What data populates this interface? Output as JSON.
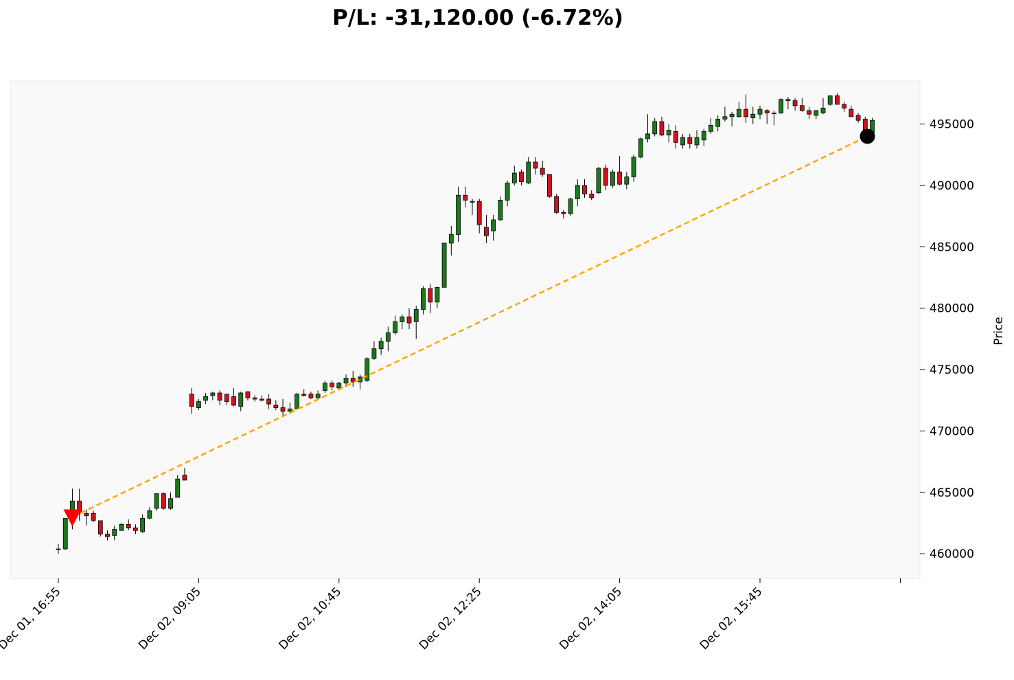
{
  "chart_data": {
    "type": "candlestick",
    "title": "P/L: -31,120.00 (-6.72%)",
    "xlabel": "",
    "ylabel": "Price",
    "ylim": [
      458000,
      498500
    ],
    "yticks": [
      460000,
      465000,
      470000,
      475000,
      480000,
      485000,
      490000,
      495000
    ],
    "xtick_labels": [
      "Dec 01, 16:55",
      "Dec 02, 09:05",
      "Dec 02, 10:45",
      "Dec 02, 12:25",
      "Dec 02, 14:05",
      "Dec 02, 15:45",
      ""
    ],
    "xtick_candle_index": [
      0,
      20,
      40,
      60,
      80,
      100,
      120
    ],
    "up_color": "#1a7a1a",
    "down_color": "#d0121b",
    "background": "#f9f9f9",
    "trade_line_color": "#ffa500",
    "entry": {
      "candle_index": 2,
      "price": 463000,
      "marker": "down-triangle",
      "color": "#ff0000"
    },
    "exit": {
      "candle_index": 116,
      "price": 494000,
      "marker": "circle",
      "color": "#000000"
    },
    "candles": [
      [
        460400,
        460800,
        460000,
        460400
      ],
      [
        460400,
        462900,
        460300,
        462900
      ],
      [
        462900,
        465300,
        462000,
        464300
      ],
      [
        464300,
        465300,
        462700,
        463300
      ],
      [
        463300,
        463600,
        462300,
        463100
      ],
      [
        463300,
        463500,
        462600,
        462700
      ],
      [
        462700,
        462700,
        461400,
        461600
      ],
      [
        461600,
        461900,
        461100,
        461400
      ],
      [
        461500,
        462300,
        461100,
        462000
      ],
      [
        461900,
        462500,
        461900,
        462400
      ],
      [
        462400,
        462800,
        461900,
        462100
      ],
      [
        462100,
        462400,
        461600,
        461900
      ],
      [
        461800,
        463200,
        461700,
        462900
      ],
      [
        462900,
        463800,
        462800,
        463500
      ],
      [
        463700,
        464900,
        463500,
        464900
      ],
      [
        464900,
        465000,
        463600,
        463700
      ],
      [
        463700,
        465000,
        463600,
        464500
      ],
      [
        464600,
        466400,
        464600,
        466100
      ],
      [
        466400,
        467000,
        466000,
        466000
      ],
      [
        473000,
        473500,
        471400,
        472000
      ],
      [
        471900,
        472600,
        471700,
        472400
      ],
      [
        472500,
        473100,
        472200,
        472800
      ],
      [
        472900,
        473200,
        472500,
        473100
      ],
      [
        473100,
        473300,
        472100,
        472500
      ],
      [
        473000,
        473000,
        472100,
        472400
      ],
      [
        472800,
        473500,
        472000,
        472100
      ],
      [
        472000,
        473200,
        471600,
        473100
      ],
      [
        473200,
        473200,
        472500,
        472700
      ],
      [
        472700,
        472900,
        472400,
        472600
      ],
      [
        472600,
        472900,
        472400,
        472500
      ],
      [
        472600,
        473000,
        471800,
        472200
      ],
      [
        472100,
        472500,
        471700,
        471900
      ],
      [
        471900,
        472600,
        471200,
        471600
      ],
      [
        471600,
        472300,
        471400,
        471800
      ],
      [
        471800,
        473100,
        471800,
        473000
      ],
      [
        473000,
        473400,
        472800,
        472900
      ],
      [
        473000,
        473200,
        472600,
        472700
      ],
      [
        472700,
        473300,
        472500,
        473000
      ],
      [
        473300,
        474100,
        473100,
        473900
      ],
      [
        473900,
        474100,
        473300,
        473600
      ],
      [
        473500,
        474000,
        473300,
        473900
      ],
      [
        473900,
        474600,
        473600,
        474300
      ],
      [
        474300,
        474900,
        473600,
        474000
      ],
      [
        474000,
        474600,
        473400,
        474400
      ],
      [
        474100,
        476000,
        474000,
        475900
      ],
      [
        475900,
        477300,
        475800,
        476700
      ],
      [
        476700,
        477600,
        476200,
        477300
      ],
      [
        477300,
        478500,
        476500,
        478000
      ],
      [
        478000,
        479400,
        477800,
        478900
      ],
      [
        478900,
        479500,
        478300,
        479300
      ],
      [
        479300,
        480000,
        478300,
        478800
      ],
      [
        478900,
        480200,
        477500,
        479900
      ],
      [
        479900,
        481800,
        479500,
        481600
      ],
      [
        481600,
        482000,
        479600,
        480500
      ],
      [
        480500,
        481600,
        480000,
        481700
      ],
      [
        481700,
        485300,
        481700,
        485300
      ],
      [
        485300,
        486700,
        484300,
        486000
      ],
      [
        486000,
        489900,
        485400,
        489200
      ],
      [
        489200,
        489900,
        488200,
        488800
      ],
      [
        488700,
        488900,
        487600,
        488700
      ],
      [
        488700,
        488900,
        486100,
        486800
      ],
      [
        486600,
        487600,
        485300,
        485900
      ],
      [
        486300,
        487600,
        485500,
        487200
      ],
      [
        487200,
        489100,
        487100,
        488800
      ],
      [
        488800,
        490400,
        488300,
        490200
      ],
      [
        490200,
        491600,
        490000,
        491000
      ],
      [
        491100,
        491300,
        490000,
        490300
      ],
      [
        490200,
        492300,
        490100,
        491900
      ],
      [
        491900,
        492300,
        490900,
        491400
      ],
      [
        491400,
        492000,
        490700,
        490900
      ],
      [
        490900,
        490900,
        489000,
        489100
      ],
      [
        489100,
        489300,
        487700,
        487800
      ],
      [
        487800,
        488000,
        487300,
        487700
      ],
      [
        487700,
        489000,
        487500,
        488900
      ],
      [
        488900,
        490500,
        488300,
        490000
      ],
      [
        490000,
        490500,
        489000,
        489300
      ],
      [
        489300,
        489600,
        488800,
        489000
      ],
      [
        489400,
        491500,
        489300,
        491400
      ],
      [
        491400,
        491700,
        489600,
        490000
      ],
      [
        490000,
        491300,
        489800,
        491100
      ],
      [
        491100,
        492400,
        490000,
        490100
      ],
      [
        490100,
        491100,
        489700,
        490700
      ],
      [
        490700,
        492500,
        490300,
        492300
      ],
      [
        492300,
        493900,
        492200,
        493800
      ],
      [
        493800,
        495800,
        493500,
        494200
      ],
      [
        494200,
        495500,
        494000,
        495200
      ],
      [
        495200,
        495600,
        494000,
        494100
      ],
      [
        494100,
        495000,
        493500,
        494500
      ],
      [
        494400,
        494900,
        493000,
        493500
      ],
      [
        493300,
        494200,
        493000,
        493900
      ],
      [
        493900,
        494200,
        493000,
        493400
      ],
      [
        493300,
        494500,
        493000,
        493900
      ],
      [
        493700,
        494600,
        493200,
        494400
      ],
      [
        494400,
        495500,
        494200,
        494900
      ],
      [
        494800,
        495700,
        494400,
        495400
      ],
      [
        495400,
        496400,
        495200,
        495600
      ],
      [
        495600,
        496000,
        494800,
        495800
      ],
      [
        495600,
        496800,
        495500,
        496200
      ],
      [
        496200,
        497400,
        495100,
        495600
      ],
      [
        495500,
        496400,
        495000,
        495800
      ],
      [
        495800,
        496500,
        495400,
        496200
      ],
      [
        496100,
        496200,
        495000,
        495900
      ],
      [
        495900,
        496100,
        494900,
        495900
      ],
      [
        495900,
        497100,
        495800,
        497000
      ],
      [
        497000,
        497200,
        496200,
        496900
      ],
      [
        496900,
        497100,
        496100,
        496500
      ],
      [
        496500,
        497100,
        496000,
        496100
      ],
      [
        496100,
        496400,
        495400,
        495800
      ],
      [
        495700,
        496100,
        495400,
        496100
      ],
      [
        495900,
        497100,
        495800,
        496300
      ],
      [
        496600,
        497300,
        496500,
        497300
      ],
      [
        497300,
        497500,
        496600,
        496600
      ],
      [
        496600,
        496800,
        496000,
        496300
      ],
      [
        496200,
        496500,
        495600,
        495600
      ],
      [
        495700,
        495900,
        495100,
        495300
      ],
      [
        495400,
        495600,
        494300,
        494300
      ],
      [
        494300,
        495500,
        494000,
        495300
      ]
    ]
  }
}
